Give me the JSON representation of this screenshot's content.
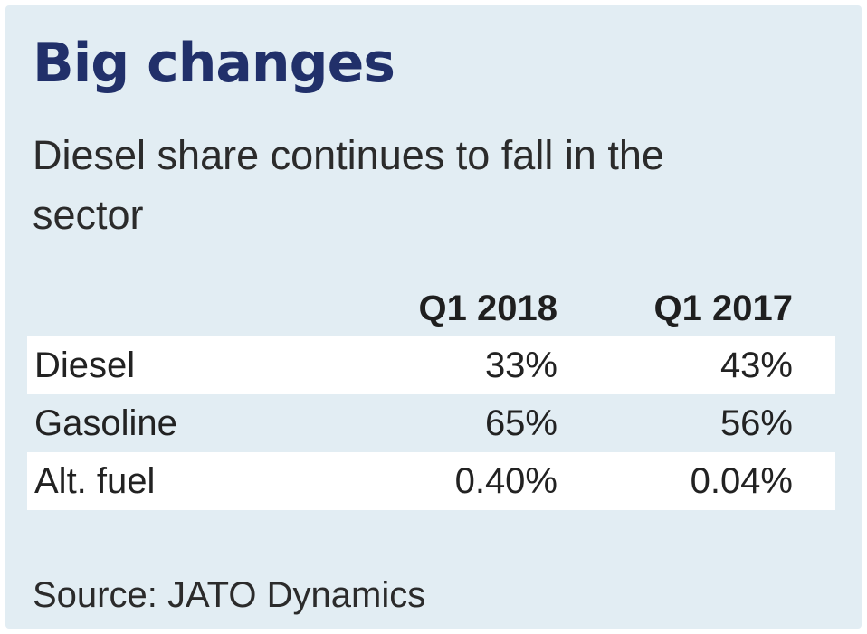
{
  "title": "Big changes",
  "subtitle": "Diesel share continues to fall in the sector",
  "source": "Source: JATO Dynamics",
  "colors": {
    "background": "#e2edf3",
    "title": "#21306a",
    "stripe": "#ffffff"
  },
  "chart_data": {
    "type": "table",
    "title": "Big changes",
    "subtitle": "Diesel share continues to fall in the sector",
    "columns": [
      "Q1 2018",
      "Q1 2017"
    ],
    "rows": [
      {
        "label": "Diesel",
        "values": [
          "33%",
          "43%"
        ]
      },
      {
        "label": "Gasoline",
        "values": [
          "65%",
          "56%"
        ]
      },
      {
        "label": "Alt. fuel",
        "values": [
          "0.40%",
          "0.04%"
        ]
      }
    ],
    "series": [
      {
        "name": "Q1 2018",
        "values": [
          33,
          65,
          0.4
        ]
      },
      {
        "name": "Q1 2017",
        "values": [
          43,
          56,
          0.04
        ]
      }
    ],
    "categories": [
      "Diesel",
      "Gasoline",
      "Alt. fuel"
    ],
    "source": "Source: JATO Dynamics"
  }
}
